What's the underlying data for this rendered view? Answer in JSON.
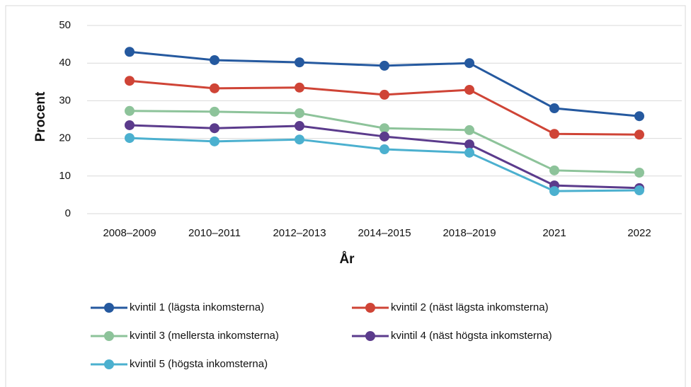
{
  "chart_data": {
    "type": "line",
    "xlabel": "År",
    "ylabel": "Procent",
    "categories": [
      "2008–2009",
      "2010–2011",
      "2012–2013",
      "2014–2015",
      "2018–2019",
      "2021",
      "2022"
    ],
    "series": [
      {
        "name": "kvintil 1 (lägsta inkomsterna)",
        "color": "#25599f",
        "values": [
          43,
          40.8,
          40.2,
          39.3,
          40,
          28,
          25.9
        ]
      },
      {
        "name": "kvintil 2 (näst lägsta inkomsterna)",
        "color": "#cf4436",
        "values": [
          35.3,
          33.3,
          33.5,
          31.6,
          32.9,
          21.2,
          21.0
        ]
      },
      {
        "name": "kvintil 3 (mellersta inkomsterna)",
        "color": "#8dc39a",
        "values": [
          27.3,
          27.1,
          26.7,
          22.7,
          22.2,
          11.5,
          10.9
        ]
      },
      {
        "name": "kvintil 4 (näst högsta inkomsterna)",
        "color": "#5b3b8c",
        "values": [
          23.5,
          22.7,
          23.3,
          20.5,
          18.4,
          7.5,
          6.8
        ]
      },
      {
        "name": "kvintil 5 (högsta inkomsterna)",
        "color": "#4bb0cf",
        "values": [
          20.1,
          19.2,
          19.7,
          17.1,
          16.2,
          6.0,
          6.2
        ]
      }
    ],
    "ylim": [
      0,
      50
    ],
    "yticks": [
      0,
      10,
      20,
      30,
      40,
      50
    ],
    "grid": true,
    "legend": "bottom"
  }
}
